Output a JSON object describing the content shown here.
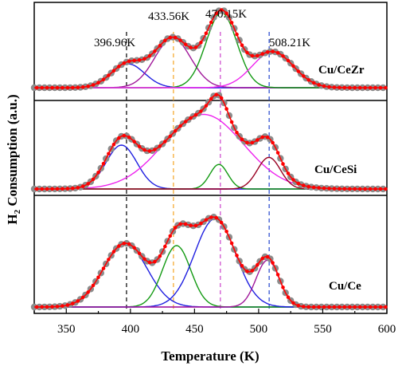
{
  "chart_data": {
    "type": "line",
    "xlabel": "Temperature (K)",
    "ylabel": "H₂ Consumption (a.u.)",
    "ylabel_main": "H",
    "ylabel_sub": "2",
    "ylabel_rest": " Consumption (a.u.)",
    "xlim": [
      325,
      600
    ],
    "xticks": [
      350,
      400,
      450,
      500,
      550,
      600
    ],
    "grid": false,
    "ref_lines": [
      {
        "x": 396.96,
        "color": "#000000"
      },
      {
        "x": 433.56,
        "color": "#f5a623"
      },
      {
        "x": 470.15,
        "color": "#cc44cc"
      },
      {
        "x": 508.21,
        "color": "#2244cc"
      }
    ],
    "peak_labels": [
      {
        "text": "396.96K",
        "x": 396.96
      },
      {
        "text": "433.56K",
        "x": 433.56
      },
      {
        "text": "470.15K",
        "x": 470.15
      },
      {
        "text": "508.21K",
        "x": 508.21
      }
    ],
    "panels": [
      {
        "sample": "Cu/CeZr",
        "peaks": [
          {
            "center": 398,
            "height": 0.3,
            "sigma": 13,
            "color": "#1f1fe0"
          },
          {
            "center": 433,
            "height": 0.62,
            "sigma": 14,
            "color": "#a0189a"
          },
          {
            "center": 471,
            "height": 0.94,
            "sigma": 12,
            "color": "#119911"
          },
          {
            "center": 511,
            "height": 0.45,
            "sigma": 16,
            "color": "#ee22ee"
          }
        ]
      },
      {
        "sample": "Cu/CeSi",
        "peaks": [
          {
            "center": 393,
            "height": 0.5,
            "sigma": 12,
            "color": "#1f1fe0"
          },
          {
            "center": 457,
            "height": 0.85,
            "sigma": 31,
            "color": "#ee22ee"
          },
          {
            "center": 469,
            "height": 0.28,
            "sigma": 7,
            "color": "#119911"
          },
          {
            "center": 508,
            "height": 0.36,
            "sigma": 9,
            "color": "#990022"
          }
        ]
      },
      {
        "sample": "Cu/Ce",
        "peaks": [
          {
            "center": 396,
            "height": 0.57,
            "sigma": 17,
            "color": "#1f1fe0"
          },
          {
            "center": 436,
            "height": 0.55,
            "sigma": 11,
            "color": "#119911"
          },
          {
            "center": 466,
            "height": 0.79,
            "sigma": 16,
            "color": "#1f1fe0"
          },
          {
            "center": 507,
            "height": 0.42,
            "sigma": 9,
            "color": "#a0189a"
          }
        ]
      }
    ]
  },
  "colors": {
    "experimental_points": "#8c8c8c",
    "envelope": "#ff0000",
    "envelope_markers": "#ff0000",
    "baseline": "#cc00cc"
  }
}
